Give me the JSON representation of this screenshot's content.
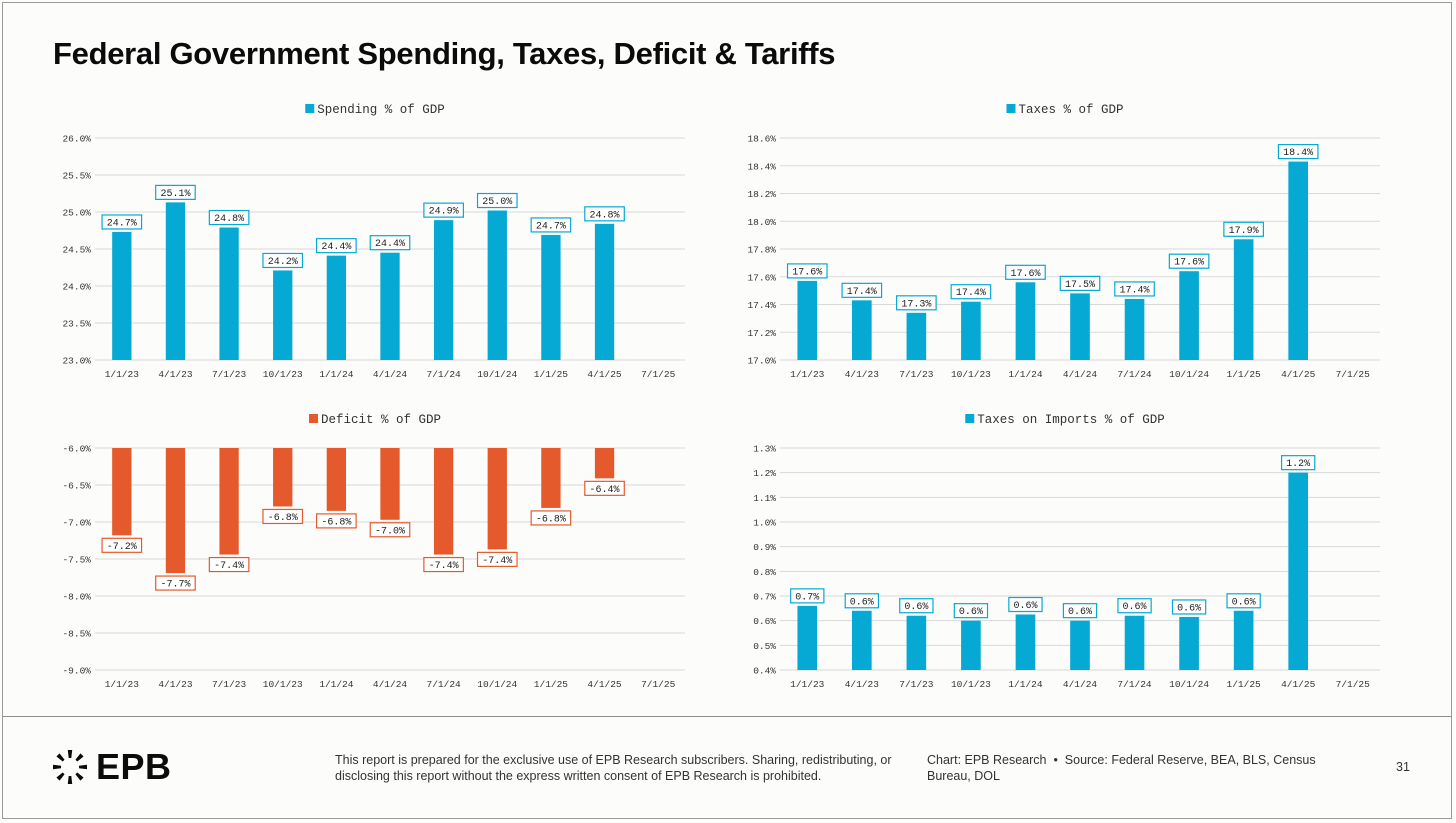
{
  "page": {
    "title": "Federal Government Spending, Taxes, Deficit & Tariffs",
    "footer": {
      "logo_text": "EPB",
      "disclaimer": "This report is prepared for the exclusive use of EPB Research subscribers. Sharing, redistributing, or disclosing this report without the express written consent of EPB Research is prohibited.",
      "credit_chart": "Chart: EPB Research",
      "credit_source": "Source: Federal Reserve, BEA, BLS, Census Bureau, DOL",
      "page_number": "31"
    }
  },
  "chart_data": [
    {
      "type": "bar",
      "title": "",
      "categories": [
        "1/1/23",
        "4/1/23",
        "7/1/23",
        "10/1/23",
        "1/1/24",
        "4/1/24",
        "7/1/24",
        "10/1/24",
        "1/1/25",
        "4/1/25",
        "7/1/25"
      ],
      "series": [
        {
          "name": "Spending % of GDP",
          "color": "#06a9d3",
          "values": [
            24.73,
            25.13,
            24.79,
            24.21,
            24.41,
            24.45,
            24.89,
            25.02,
            24.69,
            24.84,
            null
          ],
          "labels": [
            "24.7%",
            "25.1%",
            "24.8%",
            "24.2%",
            "24.4%",
            "24.4%",
            "24.9%",
            "25.0%",
            "24.7%",
            "24.8%",
            ""
          ]
        }
      ],
      "ylim": [
        23.0,
        26.0
      ],
      "yticks": [
        23.0,
        23.5,
        24.0,
        24.5,
        25.0,
        25.5,
        26.0
      ],
      "ytick_labels": [
        "23.0%",
        "23.5%",
        "24.0%",
        "24.5%",
        "25.0%",
        "25.5%",
        "26.0%"
      ],
      "grid": true,
      "legend": "top-center"
    },
    {
      "type": "bar",
      "title": "",
      "categories": [
        "1/1/23",
        "4/1/23",
        "7/1/23",
        "10/1/23",
        "1/1/24",
        "4/1/24",
        "7/1/24",
        "10/1/24",
        "1/1/25",
        "4/1/25",
        "7/1/25"
      ],
      "series": [
        {
          "name": "Taxes % of GDP",
          "color": "#06a9d3",
          "values": [
            17.57,
            17.43,
            17.34,
            17.42,
            17.56,
            17.48,
            17.44,
            17.64,
            17.87,
            18.43,
            null
          ],
          "labels": [
            "17.6%",
            "17.4%",
            "17.3%",
            "17.4%",
            "17.6%",
            "17.5%",
            "17.4%",
            "17.6%",
            "17.9%",
            "18.4%",
            ""
          ]
        }
      ],
      "ylim": [
        17.0,
        18.6
      ],
      "yticks": [
        17.0,
        17.2,
        17.4,
        17.6,
        17.8,
        18.0,
        18.2,
        18.4,
        18.6
      ],
      "ytick_labels": [
        "17.0%",
        "17.2%",
        "17.4%",
        "17.6%",
        "17.8%",
        "18.0%",
        "18.2%",
        "18.4%",
        "18.6%"
      ],
      "grid": true,
      "legend": "top-center"
    },
    {
      "type": "bar",
      "title": "",
      "categories": [
        "1/1/23",
        "4/1/23",
        "7/1/23",
        "10/1/23",
        "1/1/24",
        "4/1/24",
        "7/1/24",
        "10/1/24",
        "1/1/25",
        "4/1/25",
        "7/1/25"
      ],
      "series": [
        {
          "name": "Deficit % of GDP",
          "color": "#e55a2c",
          "values": [
            -7.18,
            -7.69,
            -7.44,
            -6.79,
            -6.85,
            -6.97,
            -7.44,
            -7.37,
            -6.81,
            -6.41,
            null
          ],
          "labels": [
            "-7.2%",
            "-7.7%",
            "-7.4%",
            "-6.8%",
            "-6.8%",
            "-7.0%",
            "-7.4%",
            "-7.4%",
            "-6.8%",
            "-6.4%",
            ""
          ]
        }
      ],
      "ylim": [
        -9.0,
        -6.0
      ],
      "bar_base": -6.0,
      "yticks": [
        -9.0,
        -8.5,
        -8.0,
        -7.5,
        -7.0,
        -6.5,
        -6.0
      ],
      "ytick_labels": [
        "-9.0%",
        "-8.5%",
        "-8.0%",
        "-7.5%",
        "-7.0%",
        "-6.5%",
        "-6.0%"
      ],
      "grid": true,
      "legend": "top-center"
    },
    {
      "type": "bar",
      "title": "",
      "categories": [
        "1/1/23",
        "4/1/23",
        "7/1/23",
        "10/1/23",
        "1/1/24",
        "4/1/24",
        "7/1/24",
        "10/1/24",
        "1/1/25",
        "4/1/25",
        "7/1/25"
      ],
      "series": [
        {
          "name": "Taxes on Imports % of GDP",
          "color": "#06a9d3",
          "values": [
            0.66,
            0.64,
            0.62,
            0.6,
            0.625,
            0.6,
            0.62,
            0.615,
            0.64,
            1.2,
            null
          ],
          "labels": [
            "0.7%",
            "0.6%",
            "0.6%",
            "0.6%",
            "0.6%",
            "0.6%",
            "0.6%",
            "0.6%",
            "0.6%",
            "1.2%",
            ""
          ]
        }
      ],
      "ylim": [
        0.4,
        1.3
      ],
      "yticks": [
        0.4,
        0.5,
        0.6,
        0.7,
        0.8,
        0.9,
        1.0,
        1.1,
        1.2,
        1.3
      ],
      "ytick_labels": [
        "0.4%",
        "0.5%",
        "0.6%",
        "0.7%",
        "0.8%",
        "0.9%",
        "1.0%",
        "1.1%",
        "1.2%",
        "1.3%"
      ],
      "grid": true,
      "legend": "top-center"
    }
  ]
}
